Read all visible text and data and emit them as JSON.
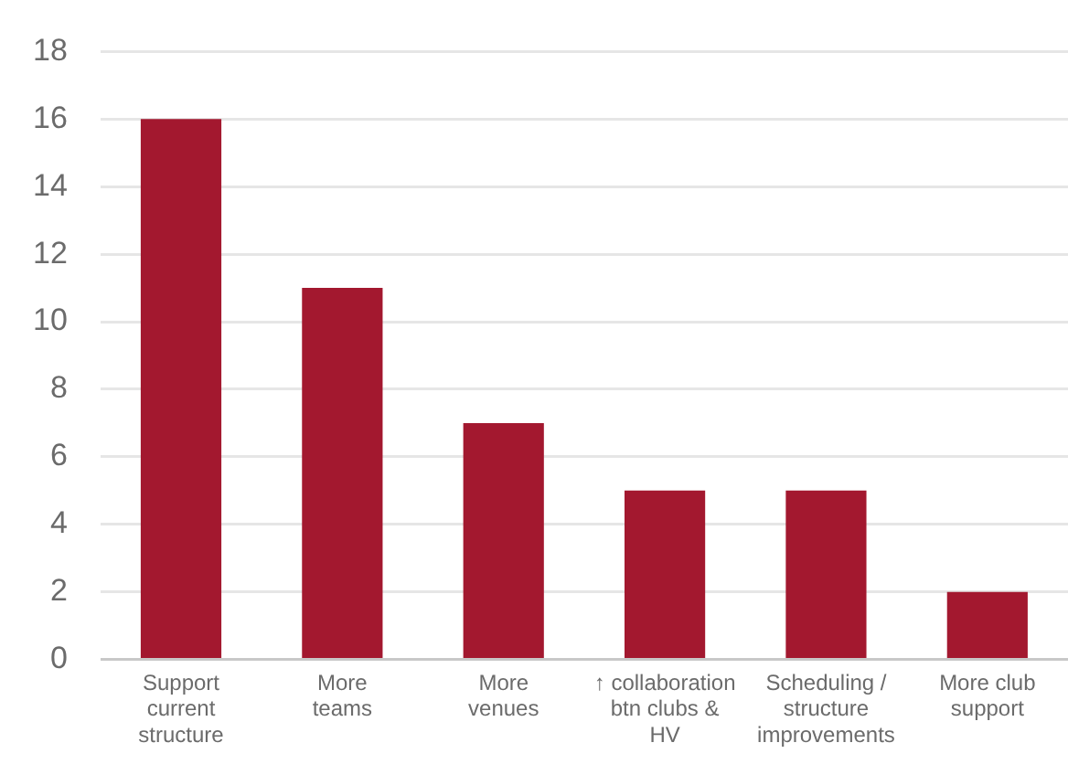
{
  "chart_data": {
    "type": "bar",
    "categories": [
      "Support current structure",
      "More teams",
      "More venues",
      "↑ collaboration btn clubs & HV",
      "Scheduling / structure improvements",
      "More club support"
    ],
    "values": [
      16,
      11,
      7,
      5,
      5,
      2
    ],
    "color": "#a3182f",
    "ylim": [
      0,
      18
    ],
    "yticks": [
      0,
      2,
      4,
      6,
      8,
      10,
      12,
      14,
      16,
      18
    ],
    "grid": "y",
    "legend": false
  }
}
